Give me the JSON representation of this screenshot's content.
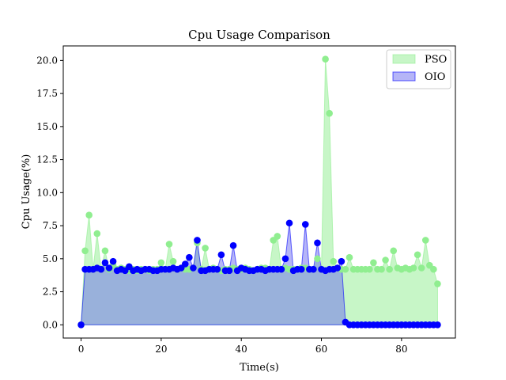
{
  "chart_data": {
    "type": "area",
    "title": "Cpu Usage Comparison",
    "xlabel": "Time(s)",
    "ylabel": "Cpu Usage(%)",
    "xlim": [
      -4.45,
      93.45
    ],
    "ylim": [
      -1.0,
      21.1
    ],
    "xticks": [
      0,
      20,
      40,
      60,
      80
    ],
    "xtick_labels": [
      "0",
      "20",
      "40",
      "60",
      "80"
    ],
    "yticks": [
      0,
      2.5,
      5,
      7.5,
      10,
      12.5,
      15,
      17.5,
      20
    ],
    "ytick_labels": [
      "0.0",
      "2.5",
      "5.0",
      "7.5",
      "10.0",
      "12.5",
      "15.0",
      "17.5",
      "20.0"
    ],
    "grid": false,
    "legend_position": "top-right",
    "x": [
      0,
      1,
      2,
      3,
      4,
      5,
      6,
      7,
      8,
      9,
      10,
      11,
      12,
      13,
      14,
      15,
      16,
      17,
      18,
      19,
      20,
      21,
      22,
      23,
      24,
      25,
      26,
      27,
      28,
      29,
      30,
      31,
      32,
      33,
      34,
      35,
      36,
      37,
      38,
      39,
      40,
      41,
      42,
      43,
      44,
      45,
      46,
      47,
      48,
      49,
      50,
      51,
      52,
      53,
      54,
      55,
      56,
      57,
      58,
      59,
      60,
      61,
      62,
      63,
      64,
      65,
      66,
      67,
      68,
      69,
      70,
      71,
      72,
      73,
      74,
      75,
      76,
      77,
      78,
      79,
      80,
      81,
      82,
      83,
      84,
      85,
      86,
      87,
      88,
      89
    ],
    "series": [
      {
        "name": "PSO",
        "color": "#90ee90",
        "fill": "#90ee90",
        "values": [
          0,
          5.6,
          8.3,
          4.2,
          6.9,
          4.2,
          5.6,
          4.2,
          4.5,
          4.2,
          4.3,
          4.2,
          4.1,
          4.2,
          4.1,
          4.2,
          4.2,
          4.1,
          4.2,
          4.2,
          4.7,
          4.2,
          6.1,
          4.8,
          4.2,
          4.3,
          4.2,
          4.2,
          4.3,
          6.2,
          4.2,
          5.8,
          4.2,
          4.3,
          4.2,
          4.1,
          4.2,
          4.2,
          4.3,
          4.2,
          4.2,
          4.3,
          4.2,
          4.1,
          4.2,
          4.3,
          4.3,
          4.2,
          6.4,
          6.7,
          4.2,
          4.3,
          4.2,
          4.2,
          4.2,
          4.3,
          4.3,
          4.2,
          4.2,
          5.0,
          4.2,
          20.1,
          16.0,
          4.8,
          4.3,
          4.2,
          4.2,
          5.1,
          4.2,
          4.2,
          4.2,
          4.2,
          4.2,
          4.7,
          4.2,
          4.2,
          4.9,
          4.2,
          5.6,
          4.3,
          4.2,
          4.3,
          4.2,
          4.3,
          5.3,
          4.3,
          6.4,
          4.5,
          4.2,
          3.1
        ]
      },
      {
        "name": "OIO",
        "color": "#0000ff",
        "fill": "#6c6cf0",
        "values": [
          0,
          4.2,
          4.2,
          4.2,
          4.3,
          4.2,
          4.7,
          4.3,
          4.8,
          4.1,
          4.2,
          4.1,
          4.4,
          4.1,
          4.2,
          4.1,
          4.2,
          4.2,
          4.1,
          4.1,
          4.2,
          4.2,
          4.2,
          4.3,
          4.2,
          4.3,
          4.6,
          5.1,
          4.3,
          6.4,
          4.1,
          4.1,
          4.2,
          4.2,
          4.2,
          5.3,
          4.1,
          4.1,
          6.0,
          4.1,
          4.3,
          4.2,
          4.1,
          4.1,
          4.2,
          4.2,
          4.1,
          4.2,
          4.2,
          4.2,
          4.2,
          5.0,
          7.7,
          4.1,
          4.2,
          4.2,
          7.6,
          4.2,
          4.2,
          6.2,
          4.2,
          4.1,
          4.2,
          4.2,
          4.3,
          4.8,
          0.2,
          0,
          0,
          0,
          0,
          0,
          0,
          0,
          0,
          0,
          0,
          0,
          0,
          0,
          0,
          0,
          0,
          0,
          0,
          0,
          0,
          0,
          0,
          0
        ]
      }
    ]
  }
}
